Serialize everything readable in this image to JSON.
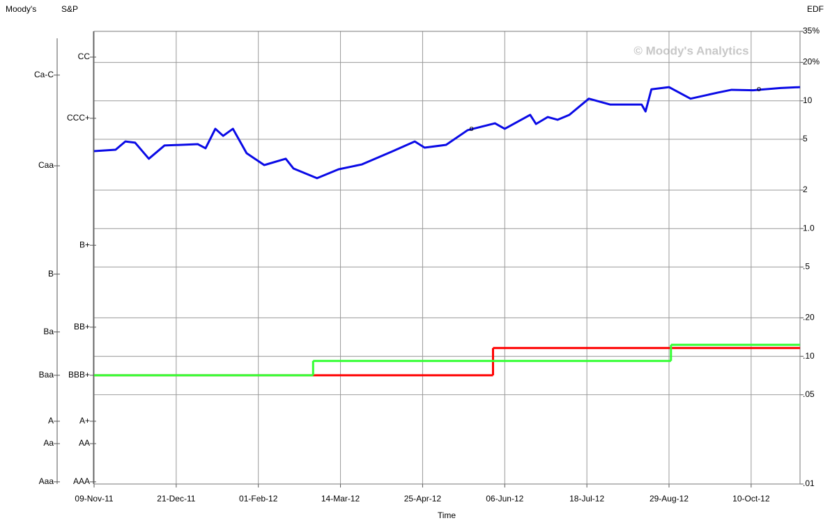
{
  "chart_data": {
    "type": "line",
    "moodys_label": "Moody's",
    "sp_label": "S&P",
    "y_label": "EDF",
    "x_label": "Time",
    "watermark": "© Moody's Analytics",
    "log_y": true,
    "grid": true,
    "xlim": [
      "2011-11-09",
      "2012-11-04"
    ],
    "xticks": [
      {
        "value": "2011-11-09",
        "label": "09-Nov-11"
      },
      {
        "value": "2011-12-21",
        "label": "21-Dec-11"
      },
      {
        "value": "2012-02-01",
        "label": "01-Feb-12"
      },
      {
        "value": "2012-03-14",
        "label": "14-Mar-12"
      },
      {
        "value": "2012-04-25",
        "label": "25-Apr-12"
      },
      {
        "value": "2012-06-06",
        "label": "06-Jun-12"
      },
      {
        "value": "2012-07-18",
        "label": "18-Jul-12"
      },
      {
        "value": "2012-08-29",
        "label": "29-Aug-12"
      },
      {
        "value": "2012-10-10",
        "label": "10-Oct-12"
      }
    ],
    "ylim": [
      0.01,
      35
    ],
    "yticks": [
      {
        "value": 35,
        "label": "35%"
      },
      {
        "value": 20,
        "label": "20%"
      },
      10,
      5,
      2,
      {
        "value": 1,
        "label": "1.0"
      },
      {
        "value": 0.5,
        "label": ".5"
      },
      {
        "value": 0.2,
        "label": ".20"
      },
      {
        "value": 0.1,
        "label": ".10"
      },
      {
        "value": 0.05,
        "label": ".05"
      },
      {
        "value": 0.01,
        "label": ".01"
      }
    ],
    "moodys_ticks": [
      {
        "value": 15.9,
        "label": "Ca-C"
      },
      {
        "value": 3.1,
        "label": "Caa"
      },
      {
        "value": 0.44,
        "label": "B"
      },
      {
        "value": 0.155,
        "label": "Ba"
      },
      {
        "value": 0.071,
        "label": "Baa"
      },
      {
        "value": 0.031,
        "label": "A"
      },
      {
        "value": 0.0207,
        "label": "Aa"
      },
      {
        "value": 0.0104,
        "label": "Aaa"
      }
    ],
    "sp_ticks": [
      {
        "value": 22,
        "label": "CC"
      },
      {
        "value": 7.3,
        "label": "CCC+"
      },
      {
        "value": 0.74,
        "label": "B+"
      },
      {
        "value": 0.169,
        "label": "BB+"
      },
      {
        "value": 0.071,
        "label": "BBB+"
      },
      {
        "value": 0.031,
        "label": "A+"
      },
      {
        "value": 0.0207,
        "label": "AA"
      },
      {
        "value": 0.0104,
        "label": "AAA"
      }
    ],
    "series": [
      {
        "color": "#0a0ae6",
        "x": [
          "2011-11-09",
          "2011-11-20",
          "2011-11-25",
          "2011-11-30",
          "2011-12-07",
          "2011-12-15",
          "2012-01-01",
          "2012-01-05",
          "2012-01-10",
          "2012-01-14",
          "2012-01-19",
          "2012-01-26",
          "2012-02-04",
          "2012-02-15",
          "2012-02-19",
          "2012-03-02",
          "2012-03-13",
          "2012-03-25",
          "2012-04-09",
          "2012-04-21",
          "2012-04-26",
          "2012-05-07",
          "2012-05-18",
          "2012-06-01",
          "2012-06-06",
          "2012-06-19",
          "2012-06-22",
          "2012-06-28",
          "2012-07-03",
          "2012-07-09",
          "2012-07-19",
          "2012-07-30",
          "2012-08-15",
          "2012-08-17",
          "2012-08-20",
          "2012-08-29",
          "2012-09-09",
          "2012-09-23",
          "2012-09-30",
          "2012-10-11",
          "2012-10-25",
          "2012-11-04"
        ],
        "values": [
          4.04,
          4.14,
          4.81,
          4.7,
          3.52,
          4.47,
          4.58,
          4.25,
          6.04,
          5.32,
          6.04,
          3.89,
          3.14,
          3.52,
          2.95,
          2.48,
          2.91,
          3.18,
          3.99,
          4.81,
          4.3,
          4.52,
          5.89,
          6.67,
          6.04,
          7.76,
          6.59,
          7.47,
          7.11,
          7.76,
          10.4,
          9.35,
          9.35,
          8.26,
          12.3,
          12.8,
          10.4,
          11.6,
          12.2,
          12.1,
          12.6,
          12.8
        ]
      },
      {
        "color": "#ff0000",
        "step": true,
        "x": [
          "2011-11-09",
          "2012-05-31",
          "2012-11-04"
        ],
        "values": [
          0.071,
          0.116,
          0.116
        ]
      },
      {
        "color": "#33ff33",
        "step": true,
        "x": [
          "2011-11-09",
          "2012-02-29",
          "2012-08-30",
          "2012-11-04"
        ],
        "values": [
          0.071,
          0.092,
          0.123,
          0.123
        ]
      }
    ],
    "annotations": [
      {
        "text": "o",
        "x": "2012-05-20",
        "y": 6.04
      },
      {
        "text": "o",
        "x": "2012-10-14",
        "y": 12.3
      }
    ]
  }
}
